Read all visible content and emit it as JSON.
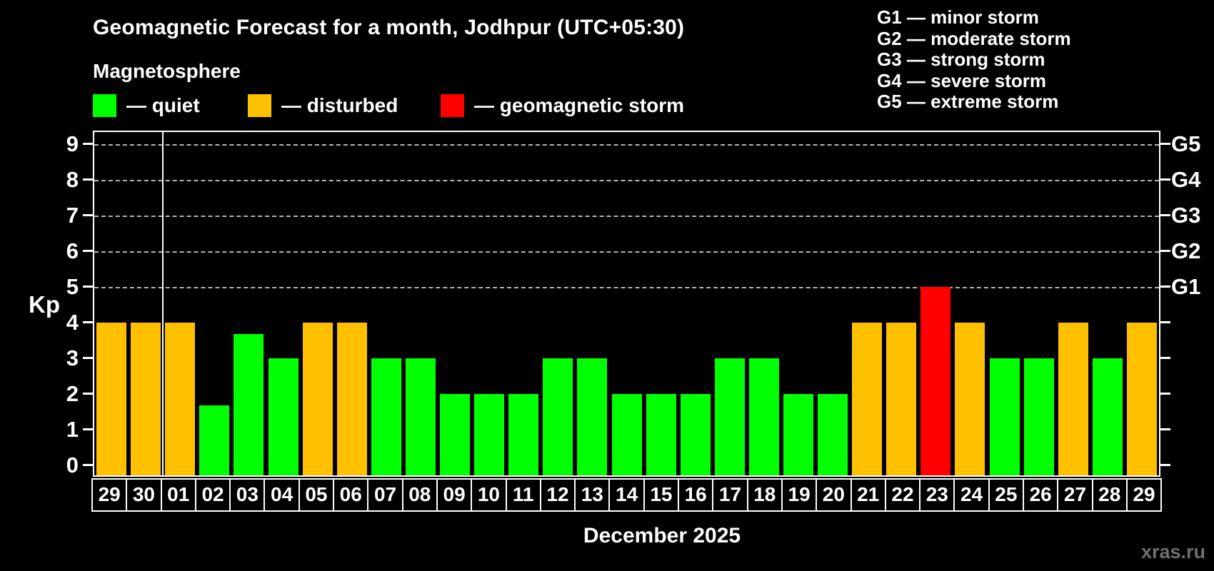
{
  "header": {
    "title": "Geomagnetic Forecast for a month, Jodhpur (UTC+05:30)",
    "subtitle": "Magnetosphere"
  },
  "legend": {
    "items": [
      {
        "key": "quiet",
        "label": "— quiet"
      },
      {
        "key": "disturbed",
        "label": "— disturbed"
      },
      {
        "key": "storm",
        "label": "— geomagnetic storm"
      }
    ]
  },
  "g_scale_legend": {
    "items": [
      "G1 — minor storm",
      "G2 — moderate storm",
      "G3 — strong storm",
      "G4 — severe storm",
      "G5 — extreme storm"
    ]
  },
  "chart_data": {
    "type": "bar",
    "title": "Geomagnetic Forecast for a month, Jodhpur (UTC+05:30)",
    "xlabel": "December 2025",
    "ylabel": "Kp",
    "ylim": [
      0,
      9
    ],
    "yticks": [
      0,
      1,
      2,
      3,
      4,
      5,
      6,
      7,
      8,
      9
    ],
    "gridlines_at_kp": [
      5,
      6,
      7,
      8,
      9
    ],
    "right_axis_labels": [
      {
        "kp": 9,
        "label": "G5"
      },
      {
        "kp": 8,
        "label": "G4"
      },
      {
        "kp": 7,
        "label": "G3"
      },
      {
        "kp": 6,
        "label": "G2"
      },
      {
        "kp": 5,
        "label": "G1"
      }
    ],
    "legend_position": "top-left",
    "grid": "dashed horizontal at storm levels only",
    "month_separator_after_index": 1,
    "colors": {
      "quiet": "#00ff00",
      "disturbed": "#ffc000",
      "storm": "#ff0000"
    },
    "categories": [
      "29",
      "30",
      "01",
      "02",
      "03",
      "04",
      "05",
      "06",
      "07",
      "08",
      "09",
      "10",
      "11",
      "12",
      "13",
      "14",
      "15",
      "16",
      "17",
      "18",
      "19",
      "20",
      "21",
      "22",
      "23",
      "24",
      "25",
      "26",
      "27",
      "28",
      "29"
    ],
    "values": [
      4,
      4,
      4,
      1.67,
      3.67,
      3,
      4,
      4,
      3,
      3,
      2,
      2,
      2,
      3,
      3,
      2,
      2,
      2,
      3,
      3,
      2,
      2,
      4,
      4,
      5,
      4,
      3,
      3,
      4,
      3,
      4
    ],
    "statuses": [
      "disturbed",
      "disturbed",
      "disturbed",
      "quiet",
      "quiet",
      "quiet",
      "disturbed",
      "disturbed",
      "quiet",
      "quiet",
      "quiet",
      "quiet",
      "quiet",
      "quiet",
      "quiet",
      "quiet",
      "quiet",
      "quiet",
      "quiet",
      "quiet",
      "quiet",
      "quiet",
      "disturbed",
      "disturbed",
      "storm",
      "disturbed",
      "quiet",
      "quiet",
      "disturbed",
      "quiet",
      "disturbed"
    ]
  },
  "footer": {
    "xaxis_title": "December 2025",
    "watermark": "xras.ru"
  }
}
